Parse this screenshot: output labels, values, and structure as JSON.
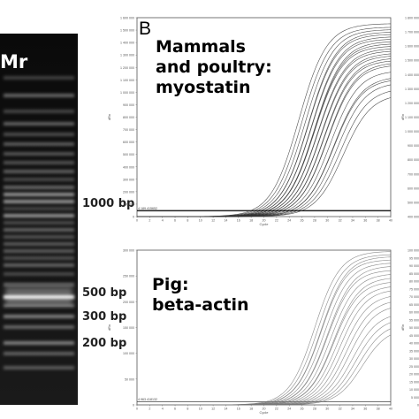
{
  "gel": {
    "marker_label": "Mr",
    "ladder_labels": [
      "1000 bp",
      "500 bp",
      "300 bp",
      "200 bp"
    ]
  },
  "panel_b": {
    "letter": "B",
    "top_plot": {
      "label_line1": "Mammals",
      "label_line2": "and poultry:",
      "label_line3": "myostatin",
      "xlabel": "Cycle",
      "ylabel": "dRn",
      "threshold_label": "4.189.415652",
      "y_ticks": [
        "1 600 000",
        "1 500 000",
        "1 400 000",
        "1 300 000",
        "1 200 000",
        "1 100 000",
        "1 000 000",
        "900 000",
        "800 000",
        "700 000",
        "600 000",
        "500 000",
        "400 000",
        "300 000",
        "200 000",
        "100 000",
        "0"
      ],
      "y_ticks_right": [
        "1 800 000",
        "1 700 000",
        "1 600 000",
        "1 500 000",
        "1 400 000",
        "1 300 000",
        "1 200 000",
        "1 100 000",
        "1 000 000",
        "900 000",
        "800 000",
        "700 000",
        "600 000",
        "500 000",
        "400 000"
      ]
    },
    "bottom_plot": {
      "label_line1": "Pig:",
      "label_line2": "beta-actin",
      "xlabel": "Cycle",
      "ylabel": "dRn",
      "threshold_label": "4.963.418132",
      "y_ticks": [
        "300 000",
        "250 000",
        "200 000",
        "150 000",
        "100 000",
        "50 000",
        "0"
      ],
      "y_ticks_right": [
        "100 000",
        "95 000",
        "90 000",
        "85 000",
        "80 000",
        "75 000",
        "70 000",
        "65 000",
        "60 000",
        "55 000",
        "50 000",
        "45 000",
        "40 000",
        "35 000",
        "30 000",
        "25 000",
        "20 000",
        "15 000",
        "10 000",
        "5 000",
        "0"
      ]
    },
    "x_ticks": [
      "0",
      "2",
      "4",
      "6",
      "8",
      "10",
      "12",
      "14",
      "16",
      "18",
      "20",
      "22",
      "24",
      "26",
      "28",
      "30",
      "32",
      "34",
      "36",
      "38",
      "40"
    ]
  },
  "chart_data": [
    {
      "type": "line",
      "xlabel": "Cycle",
      "ylabel": "dRn",
      "xlim": [
        0,
        40
      ],
      "ylim": [
        0,
        1700000
      ],
      "threshold": 50000,
      "series_midpoints": [
        25.5,
        26,
        26.5,
        27,
        27,
        27.5,
        27.5,
        28,
        28,
        28,
        28.5,
        28.5,
        29,
        29,
        29.5,
        29.5,
        30,
        30,
        30.5,
        31,
        31,
        31.5,
        32,
        32.5
      ],
      "series_plateaus": [
        1650000,
        1620000,
        1600000,
        1580000,
        1560000,
        1540000,
        1520000,
        1500000,
        1480000,
        1460000,
        1440000,
        1420000,
        1400000,
        1380000,
        1360000,
        1340000,
        1320000,
        1300000,
        1250000,
        1200000,
        1180000,
        1150000,
        1100000,
        1050000
      ]
    },
    {
      "type": "line",
      "xlabel": "Cycle",
      "ylabel": "dRn",
      "xlim": [
        0,
        40
      ],
      "ylim": [
        0,
        300000
      ],
      "threshold": 6000,
      "series_midpoints": [
        28,
        28.5,
        29,
        29,
        29.5,
        30,
        30,
        30.5,
        31,
        31,
        31.5,
        32,
        32.5,
        33,
        33.5,
        34,
        34.5,
        35,
        35.5
      ],
      "series_plateaus": [
        298000,
        292000,
        288000,
        282000,
        276000,
        270000,
        262000,
        255000,
        248000,
        240000,
        232000,
        225000,
        215000,
        205000,
        195000,
        180000,
        170000,
        160000,
        150000
      ]
    }
  ]
}
